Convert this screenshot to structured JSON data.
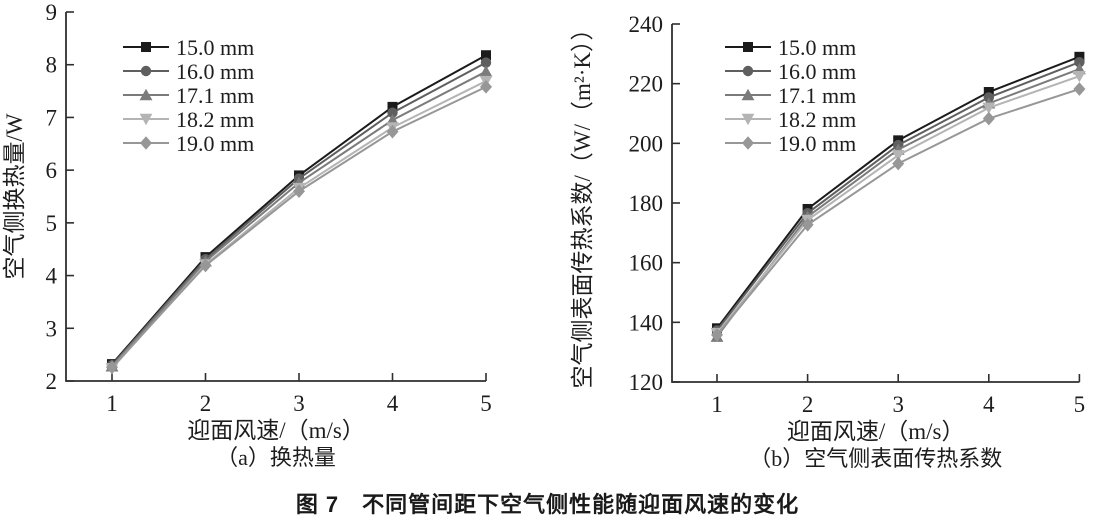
{
  "figure": {
    "caption": "图 7　不同管间距下空气侧性能随迎面风速的变化"
  },
  "chart_data": [
    {
      "type": "line",
      "title": "（a）换热量",
      "xlabel": "迎面风速/（m/s）",
      "ylabel": "空气侧换热量/W",
      "x": [
        1,
        2,
        3,
        4,
        5
      ],
      "xlim": [
        1,
        5
      ],
      "ylim": [
        2,
        9
      ],
      "yticks": [
        2,
        3,
        4,
        5,
        6,
        7,
        8,
        9
      ],
      "grid": false,
      "legend_position": "upper-left-inside",
      "series": [
        {
          "name": "15.0 mm",
          "marker": "square",
          "color": "#1b1b1b",
          "values": [
            2.32,
            4.35,
            5.9,
            7.2,
            8.18
          ]
        },
        {
          "name": "16.0 mm",
          "marker": "circle",
          "color": "#5f5f5f",
          "values": [
            2.3,
            4.31,
            5.84,
            7.09,
            8.04
          ]
        },
        {
          "name": "17.1 mm",
          "marker": "triangle-up",
          "color": "#7b7b7b",
          "values": [
            2.28,
            4.27,
            5.76,
            6.95,
            7.87
          ]
        },
        {
          "name": "18.2 mm",
          "marker": "triangle-down",
          "color": "#b4b4b4",
          "values": [
            2.24,
            4.21,
            5.66,
            6.81,
            7.69
          ]
        },
        {
          "name": "19.0 mm",
          "marker": "diamond",
          "color": "#979797",
          "values": [
            2.26,
            4.19,
            5.6,
            6.73,
            7.58
          ]
        }
      ]
    },
    {
      "type": "line",
      "title": "（b）空气侧表面传热系数",
      "xlabel": "迎面风速/（m/s）",
      "ylabel": "空气侧表面传热系数/（W/（m²·K））",
      "x": [
        1,
        2,
        3,
        4,
        5
      ],
      "xlim": [
        1,
        5
      ],
      "ylim": [
        120,
        240
      ],
      "yticks": [
        120,
        140,
        160,
        180,
        200,
        220,
        240
      ],
      "grid": false,
      "legend_position": "upper-left-inside",
      "series": [
        {
          "name": "15.0 mm",
          "marker": "square",
          "color": "#1b1b1b",
          "values": [
            138.0,
            178.0,
            201.0,
            217.2,
            229.0
          ]
        },
        {
          "name": "16.0 mm",
          "marker": "circle",
          "color": "#5f5f5f",
          "values": [
            137.3,
            176.6,
            199.4,
            215.4,
            227.2
          ]
        },
        {
          "name": "17.1 mm",
          "marker": "triangle-up",
          "color": "#7b7b7b",
          "values": [
            135.2,
            175.4,
            197.9,
            213.4,
            224.9
          ]
        },
        {
          "name": "18.2 mm",
          "marker": "triangle-down",
          "color": "#b4b4b4",
          "values": [
            136.4,
            174.3,
            196.0,
            211.9,
            222.5
          ]
        },
        {
          "name": "19.0 mm",
          "marker": "diamond",
          "color": "#979797",
          "values": [
            135.8,
            172.7,
            193.2,
            208.3,
            218.2
          ]
        }
      ]
    }
  ]
}
